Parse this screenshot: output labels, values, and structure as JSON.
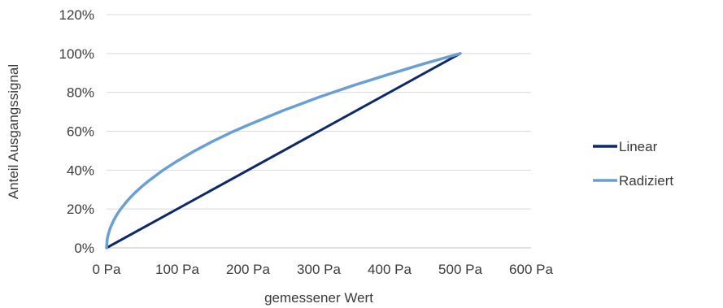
{
  "chart_data": {
    "type": "line",
    "title": "",
    "xlabel": "gemessener Wert",
    "ylabel": "Anteil Ausgangssignal",
    "xlim": [
      0,
      600
    ],
    "ylim": [
      0,
      1.2
    ],
    "x_ticks": [
      0,
      100,
      200,
      300,
      400,
      500,
      600
    ],
    "x_tick_labels": [
      "0 Pa",
      "100 Pa",
      "200 Pa",
      "300 Pa",
      "400 Pa",
      "500 Pa",
      "600 Pa"
    ],
    "y_ticks": [
      0,
      0.2,
      0.4,
      0.6,
      0.8,
      1.0,
      1.2
    ],
    "y_tick_labels": [
      "0%",
      "20%",
      "40%",
      "60%",
      "80%",
      "100%",
      "120%"
    ],
    "grid": "horizontal",
    "legend_position": "right",
    "series": [
      {
        "name": "Linear",
        "color": "#0e2a66",
        "x": [
          0,
          500
        ],
        "y": [
          0,
          1.0
        ]
      },
      {
        "name": "Radiziert",
        "color": "#6a9fd4",
        "x": [
          0,
          1,
          2,
          5,
          10,
          15,
          20,
          30,
          40,
          50,
          60,
          80,
          100,
          125,
          150,
          175,
          200,
          250,
          300,
          350,
          400,
          450,
          500
        ],
        "y": [
          0,
          0.045,
          0.063,
          0.1,
          0.141,
          0.173,
          0.2,
          0.245,
          0.283,
          0.316,
          0.346,
          0.4,
          0.447,
          0.5,
          0.548,
          0.592,
          0.632,
          0.707,
          0.775,
          0.837,
          0.894,
          0.949,
          1.0
        ]
      }
    ]
  },
  "colors": {
    "grid": "#d9d9d9",
    "axis": "#bfbfbf",
    "text": "#3a3a3a"
  }
}
